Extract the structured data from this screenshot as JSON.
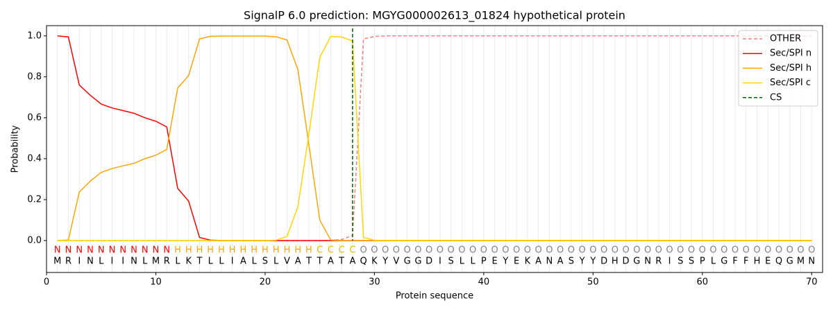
{
  "chart_data": {
    "type": "line",
    "title": "SignalP 6.0 prediction: MGYG000002613_01824 hypothetical protein",
    "xlabel": "Protein sequence",
    "ylabel": "Probability",
    "xlim": [
      0,
      71
    ],
    "ylim": [
      -0.156,
      1.05
    ],
    "xticks": [
      0,
      10,
      20,
      30,
      40,
      50,
      60,
      70
    ],
    "yticks": [
      {
        "value": 0,
        "label": "0.0"
      },
      0.2,
      0.4,
      0.6,
      0.8,
      {
        "value": 1,
        "label": "1.0"
      }
    ],
    "grid": true,
    "legend": "upper right",
    "x": [
      1,
      2,
      3,
      4,
      5,
      6,
      7,
      8,
      9,
      10,
      11,
      12,
      13,
      14,
      15,
      16,
      17,
      18,
      19,
      20,
      21,
      22,
      23,
      24,
      25,
      26,
      27,
      28,
      29,
      30,
      31,
      32,
      33,
      34,
      35,
      36,
      37,
      38,
      39,
      40,
      41,
      42,
      43,
      44,
      45,
      46,
      47,
      48,
      49,
      50,
      51,
      52,
      53,
      54,
      55,
      56,
      57,
      58,
      59,
      60,
      61,
      62,
      63,
      64,
      65,
      66,
      67,
      68,
      69,
      70
    ],
    "sequence": [
      "M",
      "R",
      "I",
      "N",
      "L",
      "I",
      "I",
      "N",
      "L",
      "M",
      "R",
      "L",
      "K",
      "T",
      "L",
      "L",
      "I",
      "A",
      "L",
      "S",
      "L",
      "V",
      "A",
      "T",
      "T",
      "A",
      "T",
      "A",
      "Q",
      "K",
      "Y",
      "V",
      "G",
      "G",
      "D",
      "I",
      "S",
      "L",
      "L",
      "P",
      "E",
      "Y",
      "E",
      "K",
      "A",
      "N",
      "A",
      "S",
      "Y",
      "Y",
      "D",
      "H",
      "D",
      "G",
      "N",
      "R",
      "I",
      "S",
      "S",
      "P",
      "L",
      "G",
      "F",
      "F",
      "H",
      "E",
      "Q",
      "G",
      "M",
      "N"
    ],
    "labels": [
      "N",
      "N",
      "N",
      "N",
      "N",
      "N",
      "N",
      "N",
      "N",
      "N",
      "N",
      "H",
      "H",
      "H",
      "H",
      "H",
      "H",
      "H",
      "H",
      "H",
      "H",
      "H",
      "H",
      "H",
      "C",
      "C",
      "C",
      "C",
      "O",
      "O",
      "O",
      "O",
      "O",
      "O",
      "O",
      "O",
      "O",
      "O",
      "O",
      "O",
      "O",
      "O",
      "O",
      "O",
      "O",
      "O",
      "O",
      "O",
      "O",
      "O",
      "O",
      "O",
      "O",
      "O",
      "O",
      "O",
      "O",
      "O",
      "O",
      "O",
      "O",
      "O",
      "O",
      "O",
      "O",
      "O",
      "O",
      "O",
      "O",
      "O"
    ],
    "label_colors": {
      "N": "red",
      "H": "orange",
      "C": "#e6b800",
      "O": "gray"
    },
    "series": [
      {
        "name": "OTHER",
        "color": "#f08080",
        "dashed": true,
        "values": [
          0,
          0,
          0,
          0,
          0,
          0,
          0,
          0,
          0,
          0,
          0,
          0,
          0,
          0,
          0,
          0,
          0,
          0,
          0,
          0,
          0,
          0,
          0,
          0,
          0,
          0.001,
          0.005,
          0.025,
          0.985,
          0.997,
          1,
          1,
          1,
          1,
          1,
          1,
          1,
          1,
          1,
          1,
          1,
          1,
          1,
          1,
          1,
          1,
          1,
          1,
          1,
          1,
          1,
          1,
          1,
          1,
          1,
          1,
          1,
          1,
          1,
          1,
          1,
          1,
          1,
          1,
          1,
          1,
          1,
          1,
          1,
          1
        ]
      },
      {
        "name": "Sec/SPI n",
        "color": "red",
        "values": [
          1.0,
          0.995,
          0.76,
          0.71,
          0.667,
          0.648,
          0.635,
          0.622,
          0.6,
          0.583,
          0.555,
          0.255,
          0.193,
          0.015,
          0.002,
          0,
          0,
          0,
          0,
          0,
          0,
          0,
          0,
          0,
          0,
          0,
          0,
          0,
          0,
          0,
          0,
          0,
          0,
          0,
          0,
          0,
          0,
          0,
          0,
          0,
          0,
          0,
          0,
          0,
          0,
          0,
          0,
          0,
          0,
          0,
          0,
          0,
          0,
          0,
          0,
          0,
          0,
          0,
          0,
          0,
          0,
          0,
          0,
          0,
          0,
          0,
          0,
          0,
          0,
          0
        ]
      },
      {
        "name": "Sec/SPI h",
        "color": "orange",
        "values": [
          0,
          0.003,
          0.237,
          0.29,
          0.333,
          0.352,
          0.365,
          0.377,
          0.4,
          0.417,
          0.445,
          0.745,
          0.806,
          0.985,
          0.998,
          0.999,
          0.999,
          0.999,
          0.999,
          0.999,
          0.996,
          0.98,
          0.835,
          0.47,
          0.1,
          0.003,
          0,
          0,
          0,
          0,
          0,
          0,
          0,
          0,
          0,
          0,
          0,
          0,
          0,
          0,
          0,
          0,
          0,
          0,
          0,
          0,
          0,
          0,
          0,
          0,
          0,
          0,
          0,
          0,
          0,
          0,
          0,
          0,
          0,
          0,
          0,
          0,
          0,
          0,
          0,
          0,
          0,
          0,
          0,
          0
        ]
      },
      {
        "name": "Sec/SPI c",
        "color": "gold",
        "values": [
          0,
          0,
          0,
          0,
          0,
          0,
          0,
          0,
          0,
          0,
          0,
          0,
          0,
          0,
          0,
          0,
          0,
          0,
          0,
          0,
          0.002,
          0.02,
          0.165,
          0.52,
          0.895,
          0.997,
          0.995,
          0.975,
          0.015,
          0.002,
          0,
          0,
          0,
          0,
          0,
          0,
          0,
          0,
          0,
          0,
          0,
          0,
          0,
          0,
          0,
          0,
          0,
          0,
          0,
          0,
          0,
          0,
          0,
          0,
          0,
          0,
          0,
          0,
          0,
          0,
          0,
          0,
          0,
          0,
          0,
          0,
          0,
          0,
          0,
          0
        ]
      }
    ],
    "cs": {
      "name": "CS",
      "x": 28,
      "color": "#006400"
    }
  }
}
